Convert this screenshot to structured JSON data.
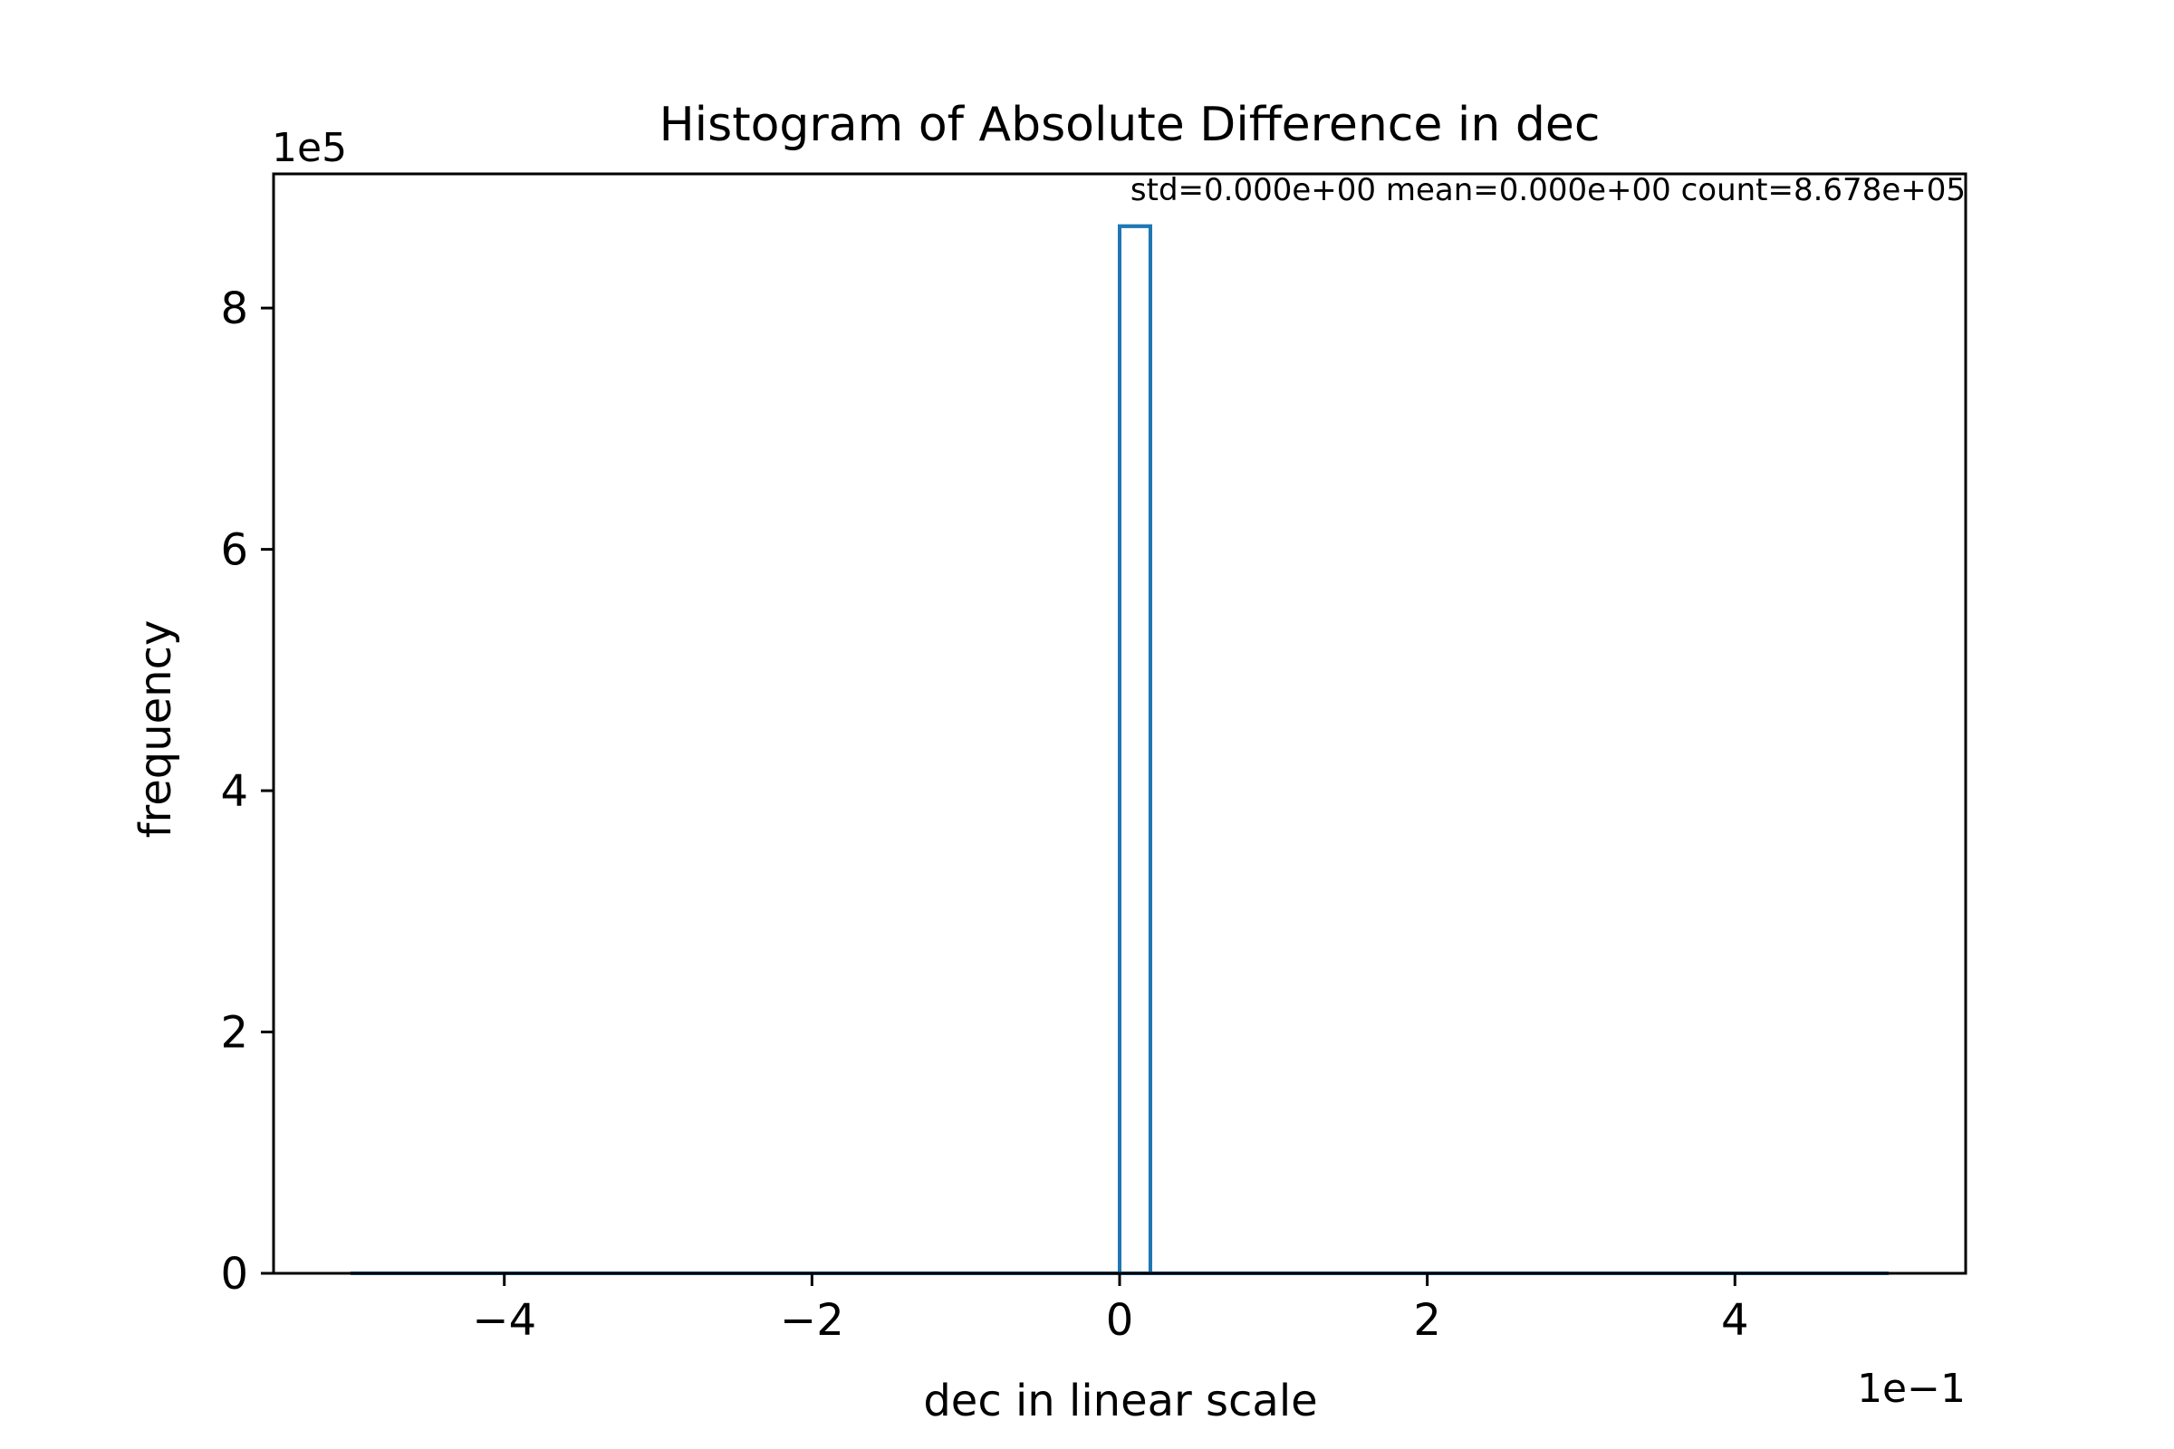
{
  "chart_data": {
    "type": "bar",
    "subtype": "histogram-step",
    "title": "Histogram of Absolute Difference in dec",
    "xlabel": "dec in linear scale",
    "ylabel": "frequency",
    "annotation": "std=0.000e+00 mean=0.000e+00 count=8.678e+05",
    "x_offset_label": "1e−1",
    "y_offset_label": "1e5",
    "x_scale_factor": 0.1,
    "y_scale_factor": 100000,
    "xlim": [
      -0.55,
      0.55
    ],
    "ylim": [
      0,
      911190
    ],
    "x_ticks": [
      -0.4,
      -0.2,
      0,
      0.2,
      0.4
    ],
    "x_tick_labels": [
      "−4",
      "−2",
      "0",
      "2",
      "4"
    ],
    "y_ticks": [
      0,
      200000,
      400000,
      600000,
      800000
    ],
    "y_tick_labels": [
      "0",
      "2",
      "4",
      "6",
      "8"
    ],
    "range": [
      -0.5,
      0.5
    ],
    "bins": [
      {
        "start": 0.0,
        "end": 0.02,
        "count": 867800
      }
    ],
    "series_color": "#1f77b4",
    "grid": false
  }
}
